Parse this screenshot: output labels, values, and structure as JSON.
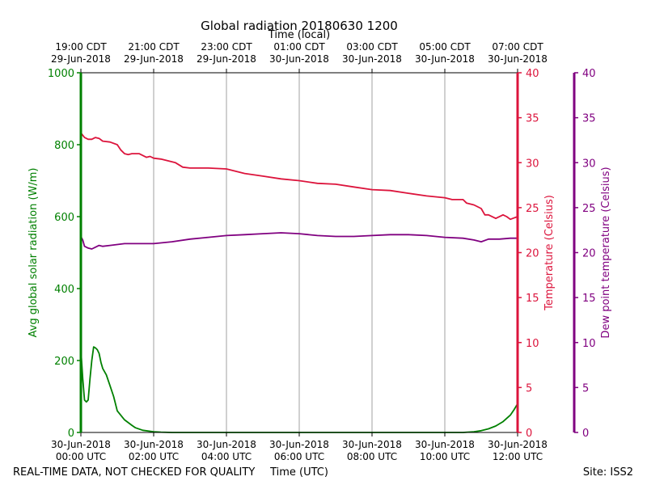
{
  "title": "Global radiation 20180630 1200",
  "top_axis_label": "Time (local)",
  "bottom_axis_label": "Time (UTC)",
  "footer_left": "REAL-TIME DATA, NOT CHECKED FOR QUALITY",
  "footer_right": "Site: ISS2",
  "colors": {
    "radiation": "#008000",
    "temperature": "#dc143c",
    "dewpoint": "#800080",
    "grid": "#a0a0a0"
  },
  "chart_data": {
    "type": "line",
    "title": "Global radiation 20180630 1200",
    "x_unit": "hours since 30-Jun-2018 00:00 UTC",
    "xlim": [
      0,
      12
    ],
    "bottom_ticks": [
      {
        "x": 0,
        "line1": "30-Jun-2018",
        "line2": "00:00 UTC"
      },
      {
        "x": 2,
        "line1": "30-Jun-2018",
        "line2": "02:00 UTC"
      },
      {
        "x": 4,
        "line1": "30-Jun-2018",
        "line2": "04:00 UTC"
      },
      {
        "x": 6,
        "line1": "30-Jun-2018",
        "line2": "06:00 UTC"
      },
      {
        "x": 8,
        "line1": "30-Jun-2018",
        "line2": "08:00 UTC"
      },
      {
        "x": 10,
        "line1": "30-Jun-2018",
        "line2": "10:00 UTC"
      },
      {
        "x": 12,
        "line1": "30-Jun-2018",
        "line2": "12:00 UTC"
      }
    ],
    "top_ticks": [
      {
        "x": 0,
        "line1": "19:00 CDT",
        "line2": "29-Jun-2018"
      },
      {
        "x": 2,
        "line1": "21:00 CDT",
        "line2": "29-Jun-2018"
      },
      {
        "x": 4,
        "line1": "23:00 CDT",
        "line2": "29-Jun-2018"
      },
      {
        "x": 6,
        "line1": "01:00 CDT",
        "line2": "30-Jun-2018"
      },
      {
        "x": 8,
        "line1": "03:00 CDT",
        "line2": "30-Jun-2018"
      },
      {
        "x": 10,
        "line1": "05:00 CDT",
        "line2": "30-Jun-2018"
      },
      {
        "x": 12,
        "line1": "07:00 CDT",
        "line2": "30-Jun-2018"
      }
    ],
    "left_axis": {
      "label": "Avg global solar radiation (W/m)",
      "ylim": [
        0,
        1000
      ],
      "ticks": [
        "0",
        "200",
        "400",
        "600",
        "800",
        "1000"
      ]
    },
    "right_axis": {
      "label": "Temperature (Celsius)",
      "ylim": [
        0,
        40
      ],
      "ticks": [
        "0",
        "5",
        "10",
        "15",
        "20",
        "25",
        "30",
        "35",
        "40"
      ]
    },
    "far_right_axis": {
      "label": "Dew point temperature (Celsius)",
      "ylim": [
        0,
        40
      ],
      "ticks": [
        "0",
        "5",
        "10",
        "15",
        "20",
        "25",
        "30",
        "35",
        "40"
      ]
    },
    "series": [
      {
        "name": "Avg global solar radiation",
        "axis": "left",
        "x": [
          0,
          0.05,
          0.1,
          0.15,
          0.2,
          0.25,
          0.3,
          0.35,
          0.4,
          0.45,
          0.5,
          0.55,
          0.6,
          0.7,
          0.8,
          0.9,
          1.0,
          1.2,
          1.4,
          1.5,
          1.7,
          2.0,
          2.2,
          2.5,
          3.0,
          4.0,
          6.0,
          8.0,
          10.0,
          10.5,
          10.8,
          11.0,
          11.2,
          11.4,
          11.6,
          11.8,
          11.9,
          12.0
        ],
        "y": [
          230,
          150,
          90,
          85,
          90,
          150,
          200,
          238,
          235,
          230,
          220,
          195,
          178,
          160,
          130,
          100,
          60,
          35,
          20,
          13,
          6,
          2,
          1,
          0,
          0,
          0,
          0,
          0,
          0,
          0,
          2,
          5,
          10,
          18,
          30,
          48,
          63,
          80
        ]
      },
      {
        "name": "Temperature",
        "axis": "right",
        "x": [
          0,
          0.1,
          0.2,
          0.3,
          0.4,
          0.5,
          0.6,
          0.8,
          1.0,
          1.1,
          1.2,
          1.3,
          1.4,
          1.6,
          1.8,
          1.9,
          2.0,
          2.2,
          2.4,
          2.6,
          2.8,
          3.0,
          3.5,
          4.0,
          4.5,
          5.0,
          5.5,
          6.0,
          6.5,
          7.0,
          7.5,
          8.0,
          8.5,
          9.0,
          9.5,
          10.0,
          10.2,
          10.5,
          10.6,
          10.8,
          11.0,
          11.1,
          11.2,
          11.4,
          11.6,
          11.7,
          11.8,
          12.0
        ],
        "y": [
          33.3,
          32.8,
          32.6,
          32.6,
          32.8,
          32.7,
          32.4,
          32.3,
          32.0,
          31.4,
          31.0,
          30.9,
          31.0,
          31.0,
          30.6,
          30.7,
          30.5,
          30.4,
          30.2,
          30.0,
          29.5,
          29.4,
          29.4,
          29.3,
          28.8,
          28.5,
          28.2,
          28.0,
          27.7,
          27.6,
          27.3,
          27.0,
          26.9,
          26.6,
          26.3,
          26.1,
          25.9,
          25.9,
          25.5,
          25.3,
          24.9,
          24.2,
          24.2,
          23.8,
          24.2,
          24.0,
          23.7,
          24.0
        ]
      },
      {
        "name": "Dew point temperature",
        "axis": "far_right",
        "x": [
          0,
          0.05,
          0.1,
          0.15,
          0.2,
          0.3,
          0.4,
          0.5,
          0.6,
          0.8,
          1.0,
          1.2,
          1.5,
          2.0,
          2.5,
          3.0,
          3.5,
          4.0,
          4.5,
          5.0,
          5.5,
          6.0,
          6.5,
          7.0,
          7.5,
          8.0,
          8.5,
          9.0,
          9.5,
          10.0,
          10.5,
          10.8,
          11.0,
          11.2,
          11.5,
          11.8,
          12.0
        ],
        "y": [
          21.8,
          21.4,
          20.7,
          20.6,
          20.5,
          20.4,
          20.6,
          20.8,
          20.7,
          20.8,
          20.9,
          21.0,
          21.0,
          21.0,
          21.2,
          21.5,
          21.7,
          21.9,
          22.0,
          22.1,
          22.2,
          22.1,
          21.9,
          21.8,
          21.8,
          21.9,
          22.0,
          22.0,
          21.9,
          21.7,
          21.6,
          21.4,
          21.2,
          21.5,
          21.5,
          21.6,
          21.6
        ]
      }
    ]
  }
}
